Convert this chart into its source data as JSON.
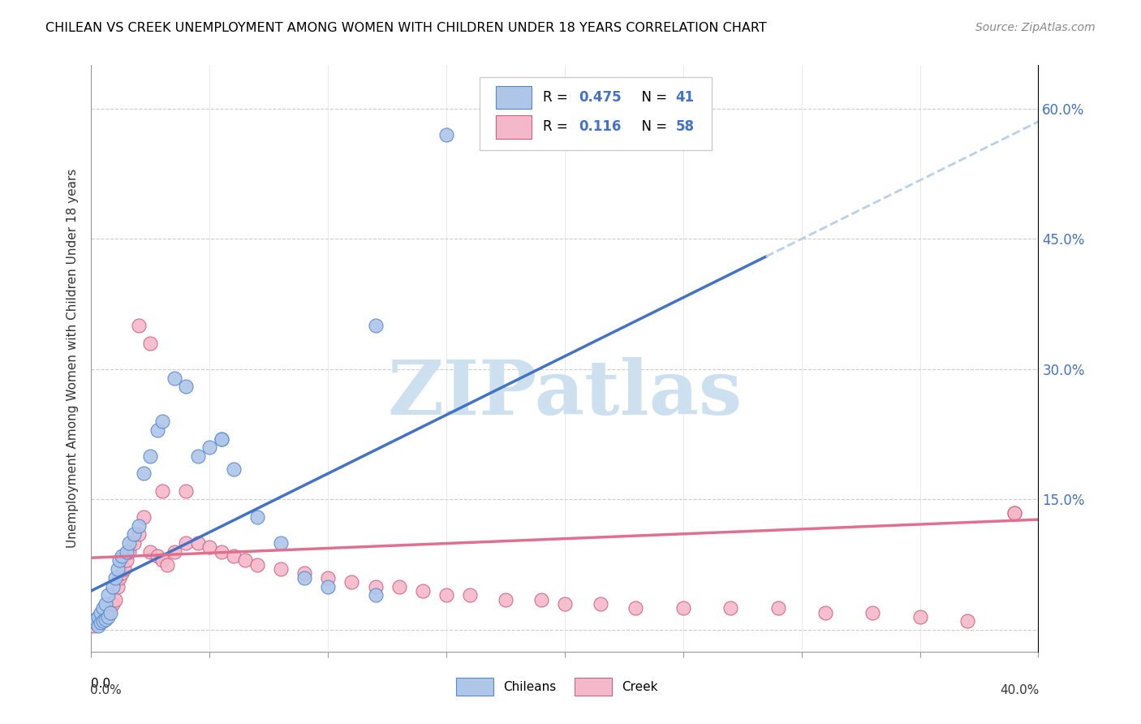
{
  "title": "CHILEAN VS CREEK UNEMPLOYMENT AMONG WOMEN WITH CHILDREN UNDER 18 YEARS CORRELATION CHART",
  "source": "Source: ZipAtlas.com",
  "ylabel": "Unemployment Among Women with Children Under 18 years",
  "right_yticklabels": [
    "",
    "15.0%",
    "30.0%",
    "45.0%",
    "60.0%"
  ],
  "right_ytick_vals": [
    0.0,
    0.15,
    0.3,
    0.45,
    0.6
  ],
  "xmin": 0.0,
  "xmax": 0.4,
  "ymin": -0.025,
  "ymax": 0.65,
  "chilean_color": "#aec6e8",
  "chilean_line_color": "#4472c4",
  "chilean_edge_color": "#5588d0",
  "creek_color": "#f4b8cb",
  "creek_line_color": "#e07090",
  "creek_edge_color": "#d06080",
  "dashed_line_color": "#b8d0e8",
  "watermark_color": "#cce0f0",
  "watermark_text": "ZIPatlas",
  "chilean_label": "Chileans",
  "creek_label": "Creek",
  "legend_r1_val": "0.475",
  "legend_n1_val": "41",
  "legend_r2_val": "0.116",
  "legend_n2_val": "58",
  "blue_text_color": "#4472c4",
  "chilean_x": [
    0.001,
    0.002,
    0.002,
    0.003,
    0.003,
    0.004,
    0.004,
    0.005,
    0.005,
    0.006,
    0.006,
    0.007,
    0.007,
    0.008,
    0.009,
    0.01,
    0.011,
    0.012,
    0.013,
    0.015,
    0.016,
    0.018,
    0.02,
    0.022,
    0.025,
    0.028,
    0.03,
    0.035,
    0.04,
    0.045,
    0.05,
    0.055,
    0.06,
    0.07,
    0.08,
    0.09,
    0.1,
    0.12,
    0.15,
    0.12,
    0.055
  ],
  "chilean_y": [
    0.01,
    0.008,
    0.012,
    0.005,
    0.015,
    0.008,
    0.02,
    0.01,
    0.025,
    0.012,
    0.03,
    0.015,
    0.04,
    0.02,
    0.05,
    0.06,
    0.07,
    0.08,
    0.085,
    0.09,
    0.1,
    0.11,
    0.12,
    0.18,
    0.2,
    0.23,
    0.24,
    0.29,
    0.28,
    0.2,
    0.21,
    0.22,
    0.185,
    0.13,
    0.1,
    0.06,
    0.05,
    0.04,
    0.57,
    0.35,
    0.22
  ],
  "creek_x": [
    0.001,
    0.002,
    0.003,
    0.004,
    0.005,
    0.006,
    0.007,
    0.008,
    0.009,
    0.01,
    0.011,
    0.012,
    0.013,
    0.014,
    0.015,
    0.016,
    0.018,
    0.02,
    0.022,
    0.025,
    0.028,
    0.03,
    0.032,
    0.035,
    0.04,
    0.045,
    0.05,
    0.055,
    0.06,
    0.065,
    0.07,
    0.08,
    0.09,
    0.1,
    0.11,
    0.12,
    0.13,
    0.14,
    0.15,
    0.16,
    0.175,
    0.19,
    0.2,
    0.215,
    0.23,
    0.25,
    0.27,
    0.29,
    0.31,
    0.33,
    0.35,
    0.37,
    0.39,
    0.02,
    0.025,
    0.03,
    0.04,
    0.39
  ],
  "creek_y": [
    0.005,
    0.008,
    0.01,
    0.012,
    0.015,
    0.018,
    0.02,
    0.025,
    0.03,
    0.035,
    0.05,
    0.06,
    0.065,
    0.07,
    0.08,
    0.09,
    0.1,
    0.11,
    0.13,
    0.09,
    0.085,
    0.08,
    0.075,
    0.09,
    0.1,
    0.1,
    0.095,
    0.09,
    0.085,
    0.08,
    0.075,
    0.07,
    0.065,
    0.06,
    0.055,
    0.05,
    0.05,
    0.045,
    0.04,
    0.04,
    0.035,
    0.035,
    0.03,
    0.03,
    0.025,
    0.025,
    0.025,
    0.025,
    0.02,
    0.02,
    0.015,
    0.01,
    0.135,
    0.35,
    0.33,
    0.16,
    0.16,
    0.135
  ]
}
